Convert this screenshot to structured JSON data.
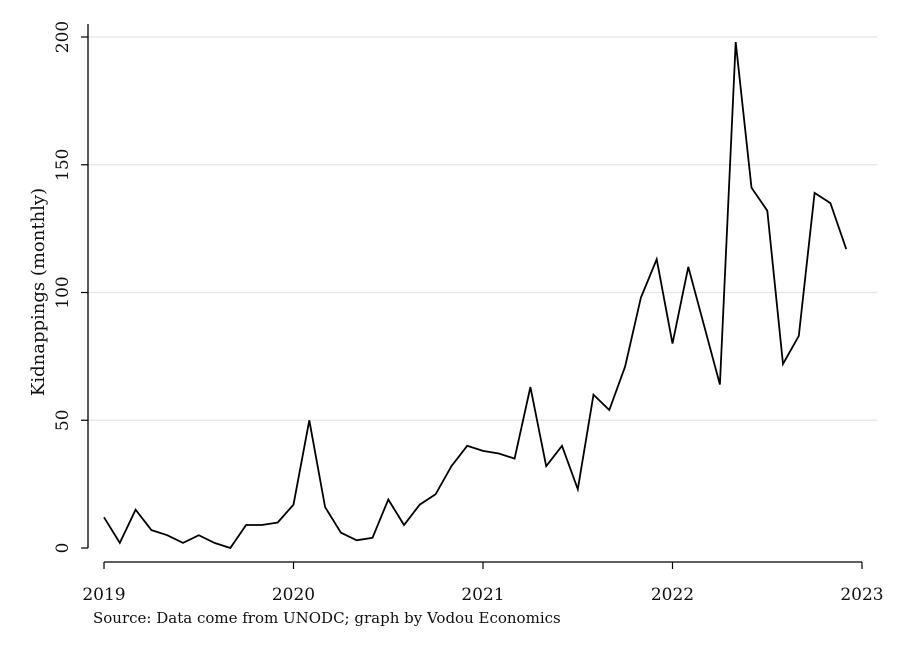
{
  "chart_data": {
    "type": "line",
    "title": "",
    "xlabel": "",
    "ylabel": "Kidnappings (monthly)",
    "note": "Source: Data come from UNODC; graph by Vodou Economics",
    "x_ticks": [
      "2019",
      "2020",
      "2021",
      "2022",
      "2023"
    ],
    "y_ticks": [
      "0",
      "50",
      "100",
      "150",
      "200"
    ],
    "xlim": [
      "2019-01",
      "2023-01"
    ],
    "ylim": [
      0,
      200
    ],
    "grid": true,
    "legend": "none",
    "colors": {
      "line": "#000000",
      "grid": "#dde7ec",
      "axis": "#000000"
    },
    "series": [
      {
        "x": [
          "2019-01",
          "2019-02",
          "2019-03",
          "2019-04",
          "2019-05",
          "2019-06",
          "2019-07",
          "2019-08",
          "2019-09",
          "2019-10",
          "2019-11",
          "2019-12",
          "2020-01",
          "2020-02",
          "2020-03",
          "2020-04",
          "2020-05",
          "2020-06",
          "2020-07",
          "2020-08",
          "2020-09",
          "2020-10",
          "2020-11",
          "2020-12",
          "2021-01",
          "2021-02",
          "2021-03",
          "2021-04",
          "2021-05",
          "2021-06",
          "2021-07",
          "2021-08",
          "2021-09",
          "2021-10",
          "2021-11",
          "2021-12",
          "2022-01",
          "2022-02",
          "2022-03",
          "2022-04",
          "2022-05",
          "2022-06",
          "2022-07",
          "2022-08",
          "2022-09",
          "2022-10",
          "2022-11",
          "2022-12"
        ],
        "values": [
          12,
          2,
          15,
          7,
          5,
          2,
          5,
          2,
          0,
          9,
          9,
          10,
          17,
          50,
          16,
          6,
          3,
          4,
          19,
          9,
          17,
          21,
          32,
          40,
          38,
          37,
          35,
          63,
          32,
          40,
          23,
          60,
          54,
          71,
          98,
          113,
          80,
          110,
          87,
          64,
          198,
          141,
          132,
          72,
          83,
          139,
          135,
          117
        ]
      }
    ]
  }
}
